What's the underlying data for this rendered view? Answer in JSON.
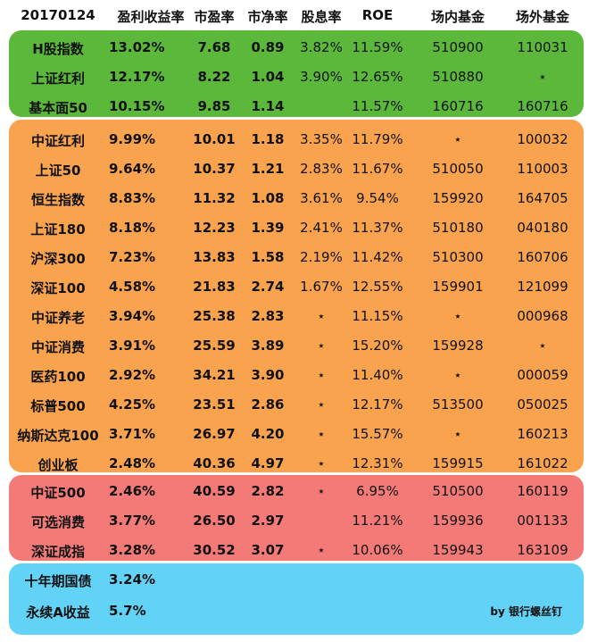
{
  "header": [
    "20170124",
    "盈利收益率",
    "市盈率",
    "市净率",
    "股息率",
    "ROE",
    "场内基金",
    "场外基金"
  ],
  "groups": [
    {
      "color": "#5cb83b",
      "rows": [
        [
          "H股指数",
          "13.02%",
          "7.68",
          "0.89",
          "3.82%",
          "11.59%",
          "510900",
          "110031"
        ],
        [
          "上证红利",
          "12.17%",
          "8.22",
          "1.04",
          "3.90%",
          "12.65%",
          "510880",
          "⋆"
        ],
        [
          "基本面50",
          "10.15%",
          "9.85",
          "1.14",
          "",
          "11.57%",
          "160716",
          "160716"
        ]
      ]
    },
    {
      "color": "#f9a34e",
      "rows": [
        [
          "中证红利",
          "9.99%",
          "10.01",
          "1.18",
          "3.35%",
          "11.79%",
          "⋆",
          "100032"
        ],
        [
          "上证50",
          "9.64%",
          "10.37",
          "1.21",
          "2.83%",
          "11.67%",
          "510050",
          "110003"
        ],
        [
          "恒生指数",
          "8.83%",
          "11.32",
          "1.08",
          "3.61%",
          "9.54%",
          "159920",
          "164705"
        ],
        [
          "上证180",
          "8.18%",
          "12.23",
          "1.39",
          "2.41%",
          "11.37%",
          "510180",
          "040180"
        ],
        [
          "沪深300",
          "7.23%",
          "13.83",
          "1.58",
          "2.19%",
          "11.42%",
          "510300",
          "160706"
        ],
        [
          "深证100",
          "4.58%",
          "21.83",
          "2.74",
          "1.67%",
          "12.55%",
          "159901",
          "121099"
        ],
        [
          "中证养老",
          "3.94%",
          "25.38",
          "2.83",
          "⋆",
          "11.15%",
          "⋆",
          "000968"
        ],
        [
          "中证消费",
          "3.91%",
          "25.59",
          "3.89",
          "⋆",
          "15.20%",
          "159928",
          "⋆"
        ],
        [
          "医药100",
          "2.92%",
          "34.21",
          "3.90",
          "⋆",
          "11.40%",
          "⋆",
          "000059"
        ],
        [
          "标普500",
          "4.25%",
          "23.51",
          "2.86",
          "⋆",
          "12.17%",
          "513500",
          "050025"
        ],
        [
          "纳斯达克100",
          "3.71%",
          "26.97",
          "4.20",
          "⋆",
          "15.57%",
          "⋆",
          "160213"
        ],
        [
          "创业板",
          "2.48%",
          "40.36",
          "4.97",
          "⋆",
          "12.31%",
          "159915",
          "161022"
        ]
      ]
    },
    {
      "color": "#f47a78",
      "rows": [
        [
          "中证500",
          "2.46%",
          "40.59",
          "2.82",
          "⋆",
          "6.95%",
          "510500",
          "160119"
        ],
        [
          "可选消费",
          "3.77%",
          "26.50",
          "2.97",
          "",
          "11.21%",
          "159936",
          "001133"
        ],
        [
          "深证成指",
          "3.28%",
          "30.52",
          "3.07",
          "⋆",
          "10.06%",
          "159943",
          "163109"
        ]
      ]
    },
    {
      "color": "#62d2f7",
      "rows": [
        [
          "十年期国债",
          "3.24%",
          "",
          "",
          "",
          "",
          "",
          ""
        ],
        [
          "永续A收益",
          "5.7%",
          "",
          "",
          "",
          "",
          "",
          ""
        ]
      ]
    }
  ],
  "credit": "by 银行螺丝钉"
}
